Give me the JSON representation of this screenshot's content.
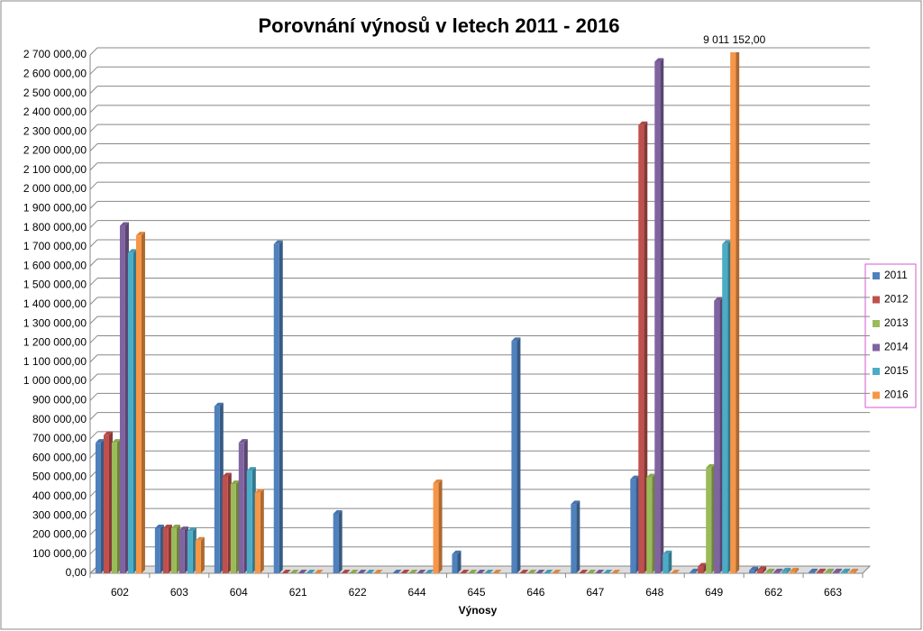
{
  "chart_data": {
    "type": "bar",
    "title": "Porovnání výnosů v letech 2011 - 2016",
    "x_label": "Výnosy",
    "categories": [
      "602",
      "603",
      "604",
      "621",
      "622",
      "644",
      "645",
      "646",
      "647",
      "648",
      "649",
      "662",
      "663"
    ],
    "series": [
      {
        "name": "2011",
        "color": "#4f81bd",
        "values": [
          680000,
          235000,
          870000,
          1715000,
          310000,
          0,
          100000,
          1210000,
          360000,
          490000,
          5000,
          15000,
          5000
        ]
      },
      {
        "name": "2012",
        "color": "#c0504d",
        "values": [
          720000,
          235000,
          505000,
          0,
          0,
          0,
          0,
          0,
          0,
          2335000,
          35000,
          17000,
          5000
        ]
      },
      {
        "name": "2013",
        "color": "#9bbb59",
        "values": [
          680000,
          235000,
          465000,
          0,
          0,
          0,
          0,
          0,
          0,
          500000,
          550000,
          5000,
          5000
        ]
      },
      {
        "name": "2014",
        "color": "#8064a2",
        "values": [
          1810000,
          225000,
          680000,
          0,
          0,
          0,
          0,
          0,
          0,
          2665000,
          1420000,
          5000,
          5000
        ]
      },
      {
        "name": "2015",
        "color": "#4bacc6",
        "values": [
          1670000,
          220000,
          535000,
          0,
          0,
          0,
          0,
          0,
          0,
          100000,
          1715000,
          10000,
          5000
        ]
      },
      {
        "name": "2016",
        "color": "#f79646",
        "values": [
          1760000,
          170000,
          420000,
          0,
          0,
          470000,
          0,
          0,
          0,
          0,
          9011152,
          10000,
          5000
        ],
        "value_labels": [
          null,
          null,
          null,
          null,
          null,
          null,
          null,
          null,
          null,
          null,
          "9 011 152,00",
          null,
          null
        ]
      }
    ],
    "ylim": [
      0,
      2700000
    ],
    "yticks": [
      {
        "value": 0,
        "label": "0,00"
      },
      {
        "value": 100000,
        "label": "100 000,00"
      },
      {
        "value": 200000,
        "label": "200 000,00"
      },
      {
        "value": 300000,
        "label": "300 000,00"
      },
      {
        "value": 400000,
        "label": "400 000,00"
      },
      {
        "value": 500000,
        "label": "500 000,00"
      },
      {
        "value": 600000,
        "label": "600 000,00"
      },
      {
        "value": 700000,
        "label": "700 000,00"
      },
      {
        "value": 800000,
        "label": "800 000,00"
      },
      {
        "value": 900000,
        "label": "900 000,00"
      },
      {
        "value": 1000000,
        "label": "1 000 000,00"
      },
      {
        "value": 1100000,
        "label": "1 100 000,00"
      },
      {
        "value": 1200000,
        "label": "1 200 000,00"
      },
      {
        "value": 1300000,
        "label": "1 300 000,00"
      },
      {
        "value": 1400000,
        "label": "1 400 000,00"
      },
      {
        "value": 1500000,
        "label": "1 500 000,00"
      },
      {
        "value": 1600000,
        "label": "1 600 000,00"
      },
      {
        "value": 1700000,
        "label": "1 700 000,00"
      },
      {
        "value": 1800000,
        "label": "1 800 000,00"
      },
      {
        "value": 1900000,
        "label": "1 900 000,00"
      },
      {
        "value": 2000000,
        "label": "2 000 000,00"
      },
      {
        "value": 2100000,
        "label": "2 100 000,00"
      },
      {
        "value": 2200000,
        "label": "2 200 000,00"
      },
      {
        "value": 2300000,
        "label": "2 300 000,00"
      },
      {
        "value": 2400000,
        "label": "2 400 000,00"
      },
      {
        "value": 2500000,
        "label": "2 500 000,00"
      },
      {
        "value": 2600000,
        "label": "2 600 000,00"
      },
      {
        "value": 2700000,
        "label": "2 700 000,00"
      }
    ],
    "grid": true,
    "legend": "right"
  }
}
